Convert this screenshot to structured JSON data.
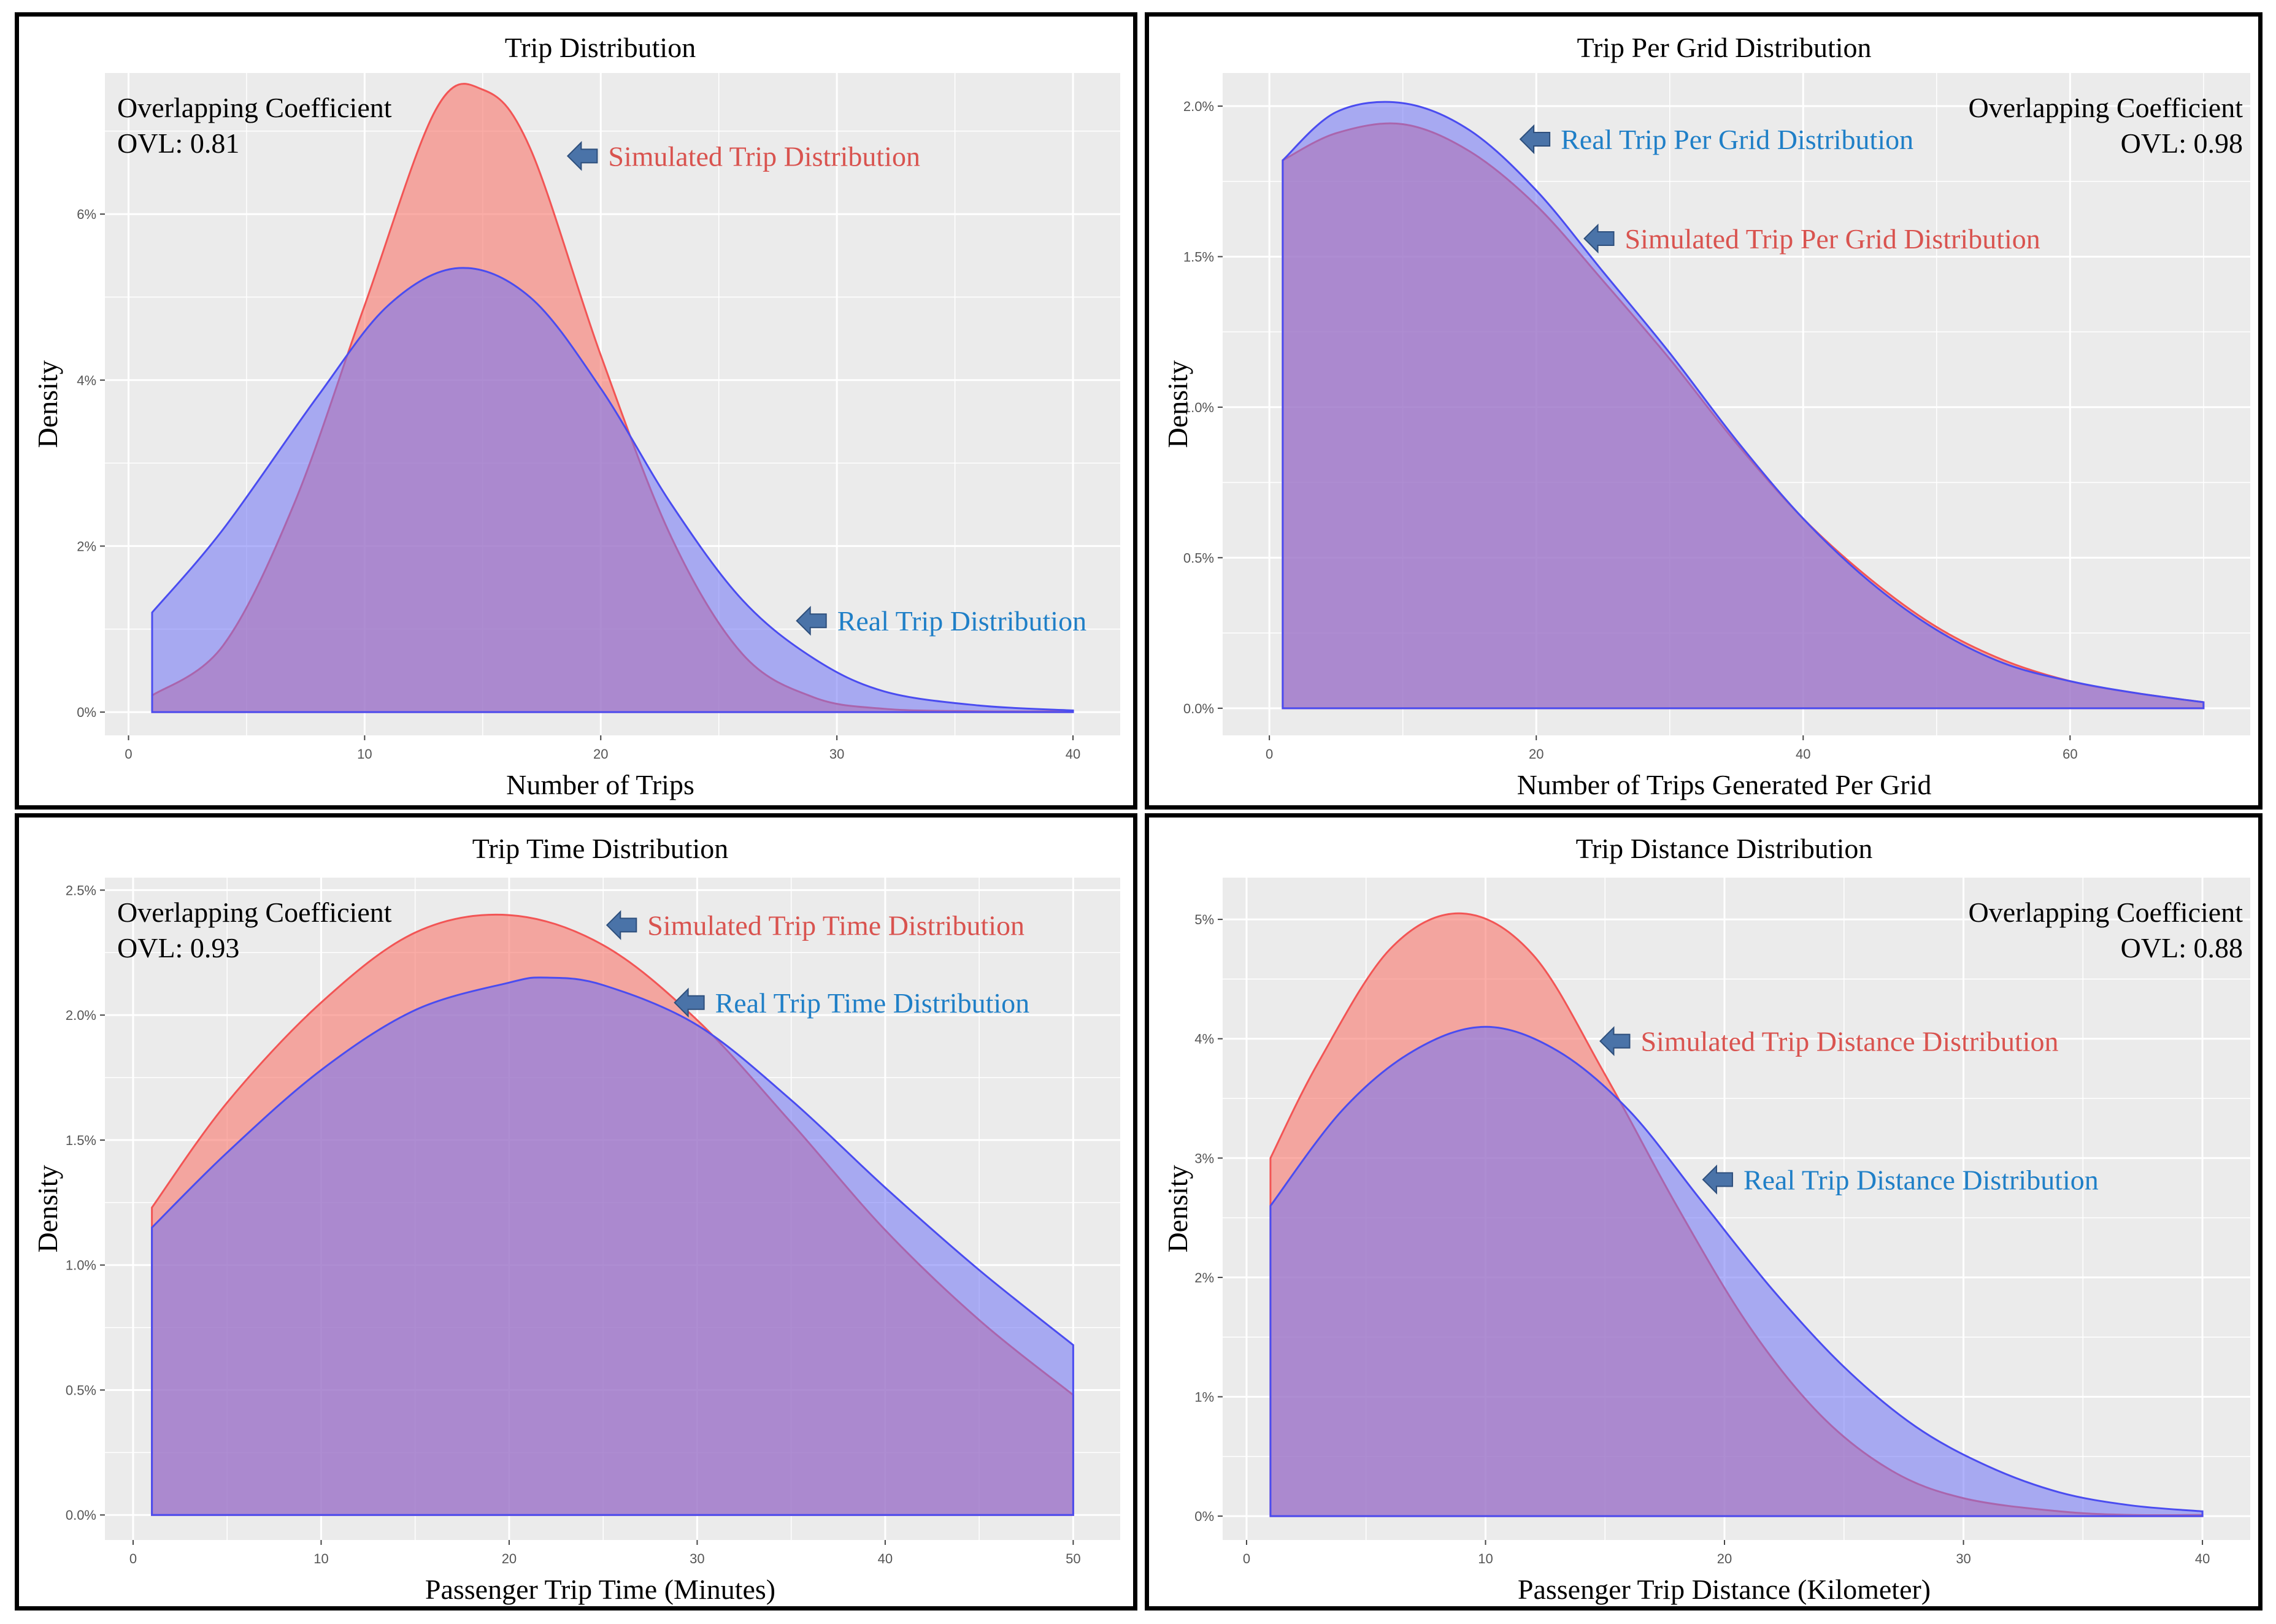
{
  "colors": {
    "simulated_fill": "#f8766d",
    "simulated_line": "#f25555",
    "real_fill": "#6f72f5",
    "real_line": "#4a4cf0",
    "simulated_text": "#d9534f",
    "real_text": "#1f7fc7",
    "arrow": "#4a73a8",
    "plot_bg": "#ebebeb",
    "grid": "#ffffff"
  },
  "chart_data": [
    {
      "type": "area",
      "title": "Trip Distribution",
      "xlabel": "Number of Trips",
      "ylabel": "Density",
      "xlim": [
        -1,
        42
      ],
      "ylim": [
        -0.0028,
        0.077
      ],
      "x_ticks": [
        0,
        10,
        20,
        30,
        40
      ],
      "x_tick_labels": [
        "0",
        "10",
        "20",
        "30",
        "40"
      ],
      "y_ticks": [
        0,
        0.02,
        0.04,
        0.06
      ],
      "y_tick_labels": [
        "0%",
        "2%",
        "4%",
        "6%"
      ],
      "ovl_lines": [
        "Overlapping Coefficient",
        "OVL: 0.81"
      ],
      "ovl_position": "top-left",
      "series": [
        {
          "name": "Real Trip Distribution",
          "color_key": "real",
          "x": [
            1,
            4,
            8,
            11,
            14,
            17,
            20,
            23,
            26,
            29,
            32,
            36,
            40
          ],
          "y": [
            0.012,
            0.022,
            0.038,
            0.049,
            0.0535,
            0.05,
            0.039,
            0.025,
            0.0135,
            0.0065,
            0.0025,
            0.0008,
            0.0002
          ]
        },
        {
          "name": "Simulated Trip Distribution",
          "color_key": "simulated",
          "x": [
            1,
            4,
            7,
            10,
            13,
            15,
            17,
            20,
            23,
            26,
            29,
            32,
            36,
            40
          ],
          "y": [
            0.002,
            0.008,
            0.025,
            0.049,
            0.0725,
            0.075,
            0.068,
            0.043,
            0.021,
            0.007,
            0.0018,
            0.0004,
            0.0001,
            0.0001
          ]
        }
      ],
      "annotations": [
        {
          "text": "Simulated Trip Distribution",
          "color_key": "simulated",
          "x": 18.6,
          "y": 0.067
        },
        {
          "text": "Real Trip Distribution",
          "color_key": "real",
          "x": 28.3,
          "y": 0.011
        }
      ]
    },
    {
      "type": "area",
      "title": "Trip Per Grid Distribution",
      "xlabel": "Number of Trips Generated Per Grid",
      "ylabel": "Density",
      "xlim": [
        -3.5,
        73.5
      ],
      "ylim": [
        -0.0009,
        0.0211
      ],
      "x_ticks": [
        0,
        20,
        40,
        60
      ],
      "x_tick_labels": [
        "0",
        "20",
        "40",
        "60"
      ],
      "y_ticks": [
        0,
        0.005,
        0.01,
        0.015,
        0.02
      ],
      "y_tick_labels": [
        "0.0%",
        "0.5%",
        "1.0%",
        "1.5%",
        "2.0%"
      ],
      "ovl_lines": [
        "Overlapping Coefficient",
        "OVL: 0.98"
      ],
      "ovl_position": "top-right",
      "series": [
        {
          "name": "Real Trip Per Grid Distribution",
          "color_key": "real",
          "x": [
            1,
            5,
            10,
            15,
            20,
            25,
            30,
            35,
            40,
            45,
            50,
            55,
            60,
            65,
            70
          ],
          "y": [
            0.0182,
            0.0198,
            0.0201,
            0.0192,
            0.0172,
            0.0145,
            0.0118,
            0.0089,
            0.0063,
            0.0042,
            0.0026,
            0.0015,
            0.0009,
            0.0005,
            0.0002
          ]
        },
        {
          "name": "Simulated Trip Per Grid Distribution",
          "color_key": "simulated",
          "x": [
            1,
            5,
            10,
            15,
            20,
            25,
            30,
            35,
            40,
            45,
            50,
            55,
            60,
            65,
            70
          ],
          "y": [
            0.0182,
            0.0191,
            0.0194,
            0.0185,
            0.0167,
            0.0142,
            0.0116,
            0.0088,
            0.0063,
            0.0043,
            0.0027,
            0.0016,
            0.0009,
            0.0005,
            0.0002
          ]
        }
      ],
      "annotations": [
        {
          "text": "Real Trip Per Grid Distribution",
          "color_key": "real",
          "x": 18.8,
          "y": 0.0189
        },
        {
          "text": "Simulated Trip Per Grid Distribution",
          "color_key": "simulated",
          "x": 23.6,
          "y": 0.0156
        }
      ]
    },
    {
      "type": "area",
      "title": "Trip Time Distribution",
      "xlabel": "Passenger Trip Time (Minutes)",
      "ylabel": "Density",
      "xlim": [
        -1.5,
        52.5
      ],
      "ylim": [
        -0.001,
        0.0255
      ],
      "x_ticks": [
        0,
        10,
        20,
        30,
        40,
        50
      ],
      "x_tick_labels": [
        "0",
        "10",
        "20",
        "30",
        "40",
        "50"
      ],
      "y_ticks": [
        0,
        0.005,
        0.01,
        0.015,
        0.02,
        0.025
      ],
      "y_tick_labels": [
        "0.0%",
        "0.5%",
        "1.0%",
        "1.5%",
        "2.0%",
        "2.5%"
      ],
      "ovl_lines": [
        "Overlapping Coefficient",
        "OVL: 0.93"
      ],
      "ovl_position": "top-left",
      "series": [
        {
          "name": "Real Trip Time Distribution",
          "color_key": "real",
          "x": [
            1,
            5,
            10,
            15,
            20,
            22,
            25,
            30,
            35,
            40,
            45,
            50
          ],
          "y": [
            0.0115,
            0.0145,
            0.0178,
            0.0202,
            0.0213,
            0.0215,
            0.0212,
            0.0196,
            0.0166,
            0.0131,
            0.0098,
            0.0068
          ]
        },
        {
          "name": "Simulated Trip Time Distribution",
          "color_key": "simulated",
          "x": [
            1,
            5,
            10,
            15,
            20,
            25,
            30,
            35,
            40,
            45,
            50
          ],
          "y": [
            0.0123,
            0.0165,
            0.0205,
            0.0233,
            0.024,
            0.0228,
            0.0198,
            0.0157,
            0.0114,
            0.0078,
            0.0048
          ]
        }
      ],
      "annotations": [
        {
          "text": "Simulated Trip Time Distribution",
          "color_key": "simulated",
          "x": 25.2,
          "y": 0.0236
        },
        {
          "text": "Real Trip Time Distribution",
          "color_key": "real",
          "x": 28.8,
          "y": 0.0205
        }
      ]
    },
    {
      "type": "area",
      "title": "Trip Distance Distribution",
      "xlabel": "Passenger Trip Distance (Kilometer)",
      "ylabel": "Density",
      "xlim": [
        -1,
        42
      ],
      "ylim": [
        -0.002,
        0.0535
      ],
      "x_ticks": [
        0,
        10,
        20,
        30,
        40
      ],
      "x_tick_labels": [
        "0",
        "10",
        "20",
        "30",
        "40"
      ],
      "y_ticks": [
        0,
        0.01,
        0.02,
        0.03,
        0.04,
        0.05
      ],
      "y_tick_labels": [
        "0%",
        "1%",
        "2%",
        "3%",
        "4%",
        "5%"
      ],
      "ovl_lines": [
        "Overlapping Coefficient",
        "OVL: 0.88"
      ],
      "ovl_position": "top-right",
      "series": [
        {
          "name": "Real Trip Distance Distribution",
          "color_key": "real",
          "x": [
            1,
            4,
            7,
            10,
            13,
            16,
            19,
            22,
            25,
            28,
            31,
            34,
            37,
            40
          ],
          "y": [
            0.026,
            0.034,
            0.039,
            0.041,
            0.039,
            0.034,
            0.0265,
            0.019,
            0.0125,
            0.0075,
            0.0042,
            0.002,
            0.0009,
            0.0004
          ]
        },
        {
          "name": "Simulated Trip Distance Distribution",
          "color_key": "simulated",
          "x": [
            1,
            3,
            6,
            9,
            12,
            15,
            18,
            21,
            24,
            27,
            30,
            34,
            37,
            40
          ],
          "y": [
            0.03,
            0.038,
            0.0475,
            0.0505,
            0.047,
            0.037,
            0.026,
            0.016,
            0.0085,
            0.0038,
            0.0015,
            0.0004,
            0.0001,
            0.0001
          ]
        }
      ],
      "annotations": [
        {
          "text": "Simulated Trip Distance Distribution",
          "color_key": "simulated",
          "x": 14.8,
          "y": 0.0398
        },
        {
          "text": "Real Trip Distance Distribution",
          "color_key": "real",
          "x": 19.1,
          "y": 0.0282
        }
      ]
    }
  ]
}
